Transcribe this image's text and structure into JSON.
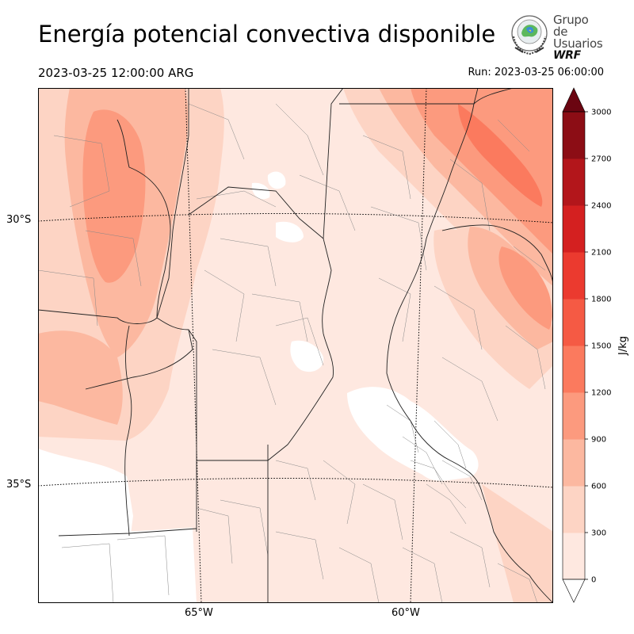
{
  "title": "Energía potencial convectiva disponible",
  "valid_time": "2023-03-25 12:00:00 ARG",
  "run_time": "Run: 2023-03-25 06:00:00",
  "logo": {
    "line1": "Grupo de",
    "line2": "Usuarios",
    "line3": "WRF"
  },
  "map": {
    "lat_labels": [
      {
        "text": "30°S"
      },
      {
        "text": "35°S"
      }
    ],
    "lon_labels": [
      {
        "text": "65°W"
      },
      {
        "text": "60°W"
      }
    ]
  },
  "colorbar": {
    "label": "J/kg",
    "ticks": [
      "0",
      "300",
      "600",
      "900",
      "1200",
      "1500",
      "1800",
      "2100",
      "2400",
      "2700",
      "3000"
    ],
    "colors": [
      "#fee8e0",
      "#fdd4c4",
      "#fcb8a0",
      "#fc9a7e",
      "#fb7a5e",
      "#f55a44",
      "#eb3a2f",
      "#d42020",
      "#b3161b",
      "#8c0d15",
      "#6b0511"
    ]
  }
}
